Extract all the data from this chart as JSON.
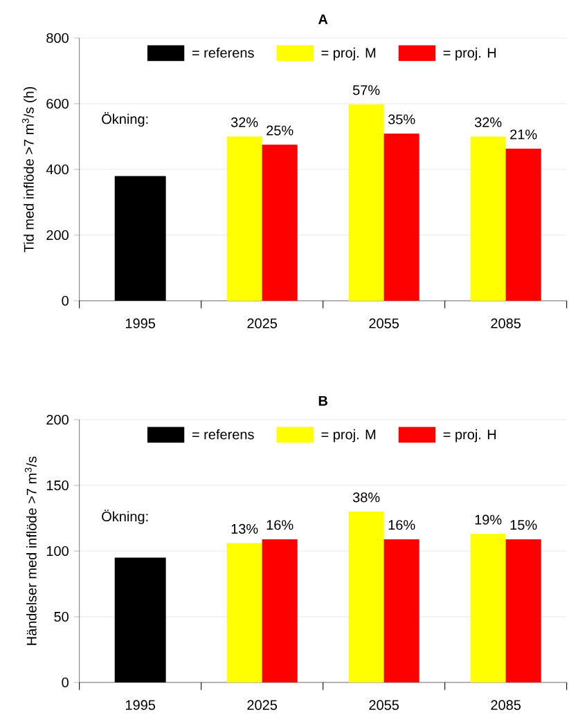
{
  "chart_data": [
    {
      "type": "bar",
      "title": "A",
      "ylabel": "Tid med inflöde >7 m$^{3}$/s (h)",
      "categories": [
        "1995",
        "2025",
        "2055",
        "2085"
      ],
      "ylim": [
        0,
        800
      ],
      "yticks": [
        0,
        200,
        400,
        600,
        800
      ],
      "grid": "y",
      "legend": "top",
      "annotations": [
        "Ökning:",
        {
          "text": "32%",
          "x": "2025",
          "y": 500
        },
        {
          "text": "57%",
          "x": "2055",
          "y": 598
        },
        {
          "text": "32%",
          "x": "2085",
          "y": 500
        },
        {
          "text": "25%",
          "x": "2025",
          "y": 475
        },
        {
          "text": "35%",
          "x": "2055",
          "y": 509
        },
        {
          "text": "21%",
          "x": "2085",
          "y": 463
        }
      ],
      "series": [
        {
          "name": "= referens",
          "color": "#000000",
          "values": [
            380,
            null,
            null,
            null
          ]
        },
        {
          "name": "= proj. M",
          "color": "#ffff00",
          "values": [
            null,
            500,
            598,
            500
          ]
        },
        {
          "name": "= proj. H",
          "color": "#ff0000",
          "values": [
            null,
            475,
            509,
            463
          ]
        }
      ]
    },
    {
      "type": "bar",
      "title": "B",
      "ylabel": "Händelser med inflöde >7 m$^{3}$/s",
      "categories": [
        "1995",
        "2025",
        "2055",
        "2085"
      ],
      "ylim": [
        0,
        200
      ],
      "yticks": [
        0,
        50,
        100,
        150,
        200
      ],
      "grid": "y",
      "legend": "top",
      "annotations": [
        "Ökning:",
        {
          "text": "13%",
          "x": "2025",
          "y": 106
        },
        {
          "text": "38%",
          "x": "2055",
          "y": 130
        },
        {
          "text": "19%",
          "x": "2085",
          "y": 113
        },
        {
          "text": "16%",
          "x": "2025",
          "y": 109
        },
        {
          "text": "16%",
          "x": "2055",
          "y": 109
        },
        {
          "text": "15%",
          "x": "2085",
          "y": 109
        }
      ],
      "series": [
        {
          "name": "= referens",
          "color": "#000000",
          "values": [
            95,
            null,
            null,
            null
          ]
        },
        {
          "name": "= proj. M",
          "color": "#ffff00",
          "values": [
            null,
            106,
            130,
            113
          ]
        },
        {
          "name": "= proj. H",
          "color": "#ff0000",
          "values": [
            null,
            109,
            109,
            109
          ]
        }
      ]
    }
  ]
}
